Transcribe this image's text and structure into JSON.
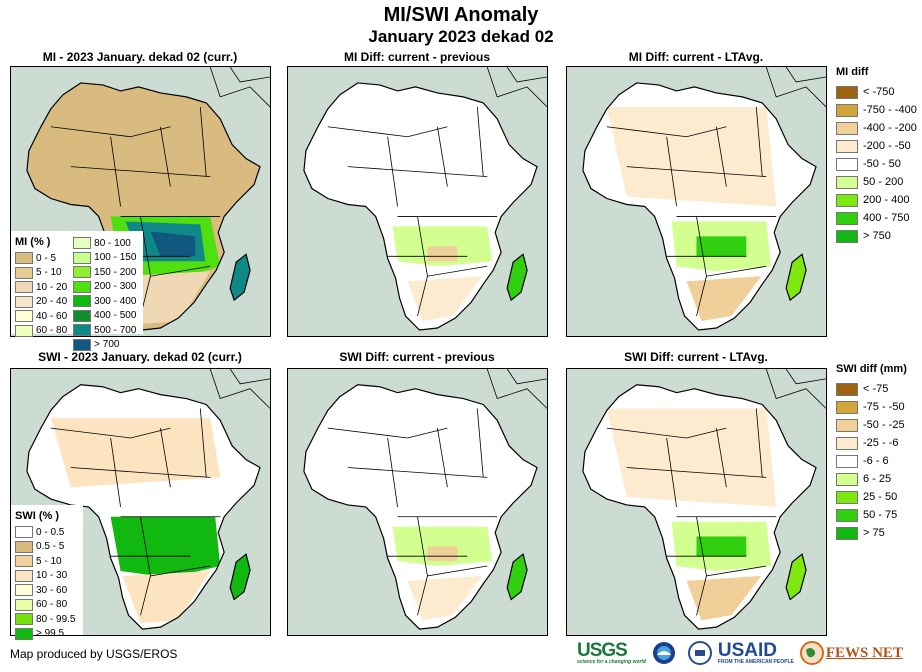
{
  "header": {
    "title": "MI/SWI Anomaly",
    "subtitle": "January 2023 dekad 02"
  },
  "panels": {
    "mi_current": {
      "title": "MI - 2023 January. dekad 02 (curr.)"
    },
    "mi_diff_prev": {
      "title": "MI Diff: current - previous"
    },
    "mi_diff_lta": {
      "title": "MI Diff: current - LTAvg."
    },
    "swi_current": {
      "title": "SWI - 2023 January. dekad 02 (curr.)"
    },
    "swi_diff_prev": {
      "title": "SWI Diff: current - previous"
    },
    "swi_diff_lta": {
      "title": "SWI Diff: current - LTAvg."
    }
  },
  "legends": {
    "mi_pct": {
      "title": "MI (% )",
      "items": [
        {
          "label": "0 - 5",
          "color": "#d9bb80"
        },
        {
          "label": "5 - 10",
          "color": "#e6c993"
        },
        {
          "label": "10 - 20",
          "color": "#f0d8b4"
        },
        {
          "label": "20 - 40",
          "color": "#f7e6cc"
        },
        {
          "label": "40 - 60",
          "color": "#ffffd8"
        },
        {
          "label": "60 - 80",
          "color": "#f1ffc0"
        },
        {
          "label": "80 - 100",
          "color": "#e4ffc0"
        },
        {
          "label": "100 - 150",
          "color": "#c8ff90"
        },
        {
          "label": "150 - 200",
          "color": "#90f030"
        },
        {
          "label": "200 - 300",
          "color": "#50e010"
        },
        {
          "label": "300 - 400",
          "color": "#10b810"
        },
        {
          "label": "400 - 500",
          "color": "#109028"
        },
        {
          "label": "500 - 700",
          "color": "#108888"
        },
        {
          "label": "> 700",
          "color": "#105880"
        }
      ]
    },
    "swi_pct": {
      "title": "SWI (% )",
      "items": [
        {
          "label": "0 - 0.5",
          "color": "#ffffff"
        },
        {
          "label": "0.5 - 5",
          "color": "#d9bb80"
        },
        {
          "label": "5 - 10",
          "color": "#f0d09c"
        },
        {
          "label": "10 - 30",
          "color": "#fce4c0"
        },
        {
          "label": "30 - 60",
          "color": "#ffffd8"
        },
        {
          "label": "60 - 80",
          "color": "#e8ffa8"
        },
        {
          "label": "80 - 99.5",
          "color": "#78e010"
        },
        {
          "label": "> 99.5",
          "color": "#10b810"
        }
      ]
    },
    "mi_diff": {
      "title": "MI diff",
      "items": [
        {
          "label": "< -750",
          "color": "#9c6410"
        },
        {
          "label": "-750 - -400",
          "color": "#d2a43c"
        },
        {
          "label": "-400 - -200",
          "color": "#f0d098"
        },
        {
          "label": "-200 - -50",
          "color": "#fdebd0"
        },
        {
          "label": "-50 - 50",
          "color": "#ffffff"
        },
        {
          "label": "50 - 200",
          "color": "#d2ff90"
        },
        {
          "label": "200 - 400",
          "color": "#7ce810"
        },
        {
          "label": "400 - 750",
          "color": "#30d010"
        },
        {
          "label": "> 750",
          "color": "#10b810"
        }
      ]
    },
    "swi_diff": {
      "title": "SWI diff (mm)",
      "items": [
        {
          "label": "< -75",
          "color": "#9c6410"
        },
        {
          "label": "-75 - -50",
          "color": "#d2a43c"
        },
        {
          "label": "-50 - -25",
          "color": "#f0d098"
        },
        {
          "label": "-25 - -6",
          "color": "#fdebd0"
        },
        {
          "label": "-6 - 6",
          "color": "#ffffff"
        },
        {
          "label": "6 - 25",
          "color": "#d2ff90"
        },
        {
          "label": "25 - 50",
          "color": "#7ce810"
        },
        {
          "label": "50 - 75",
          "color": "#30d010"
        },
        {
          "label": "> 75",
          "color": "#10b810"
        }
      ]
    }
  },
  "footer": {
    "credit": "Map produced by USGS/EROS",
    "logos": [
      "USGS",
      "NOAA",
      "USAID",
      "FEWS NET"
    ],
    "usgs_tagline": "science for a changing world",
    "usaid_tagline": "FROM THE AMERICAN PEOPLE"
  },
  "colors": {
    "ocean": "#cddcd3",
    "border": "#000000"
  }
}
